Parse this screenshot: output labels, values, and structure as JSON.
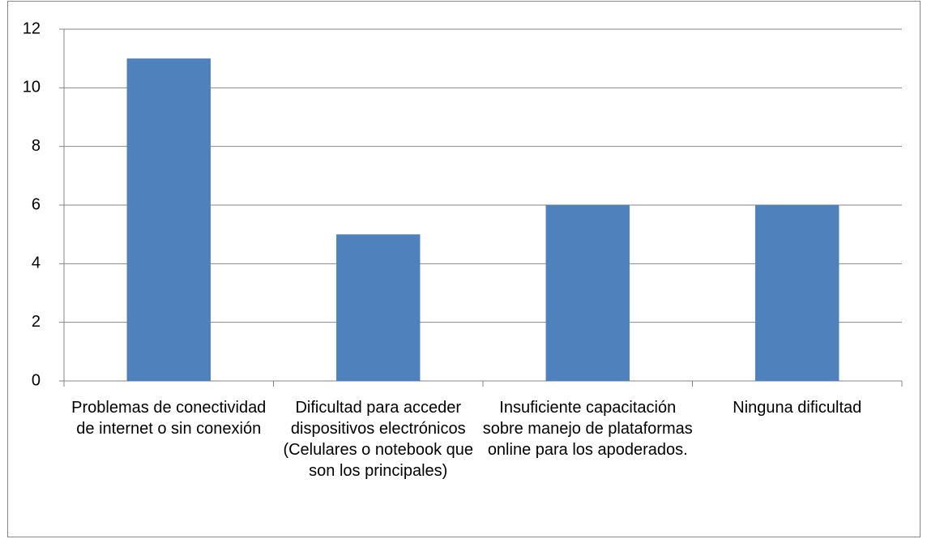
{
  "chart_data": {
    "type": "bar",
    "categories": [
      "Problemas de conectividad de internet o sin conexión",
      "Dificultad para acceder dispositivos electrónicos (Celulares o notebook que son los principales)",
      "Insuficiente capacitación sobre manejo de plataformas online para los apoderados.",
      "Ninguna dificultad"
    ],
    "values": [
      11,
      5,
      6,
      6
    ],
    "color": "#4f81bd",
    "ylim": [
      0,
      12
    ],
    "yticks": [
      0,
      2,
      4,
      6,
      8,
      10,
      12
    ],
    "grid": true
  }
}
